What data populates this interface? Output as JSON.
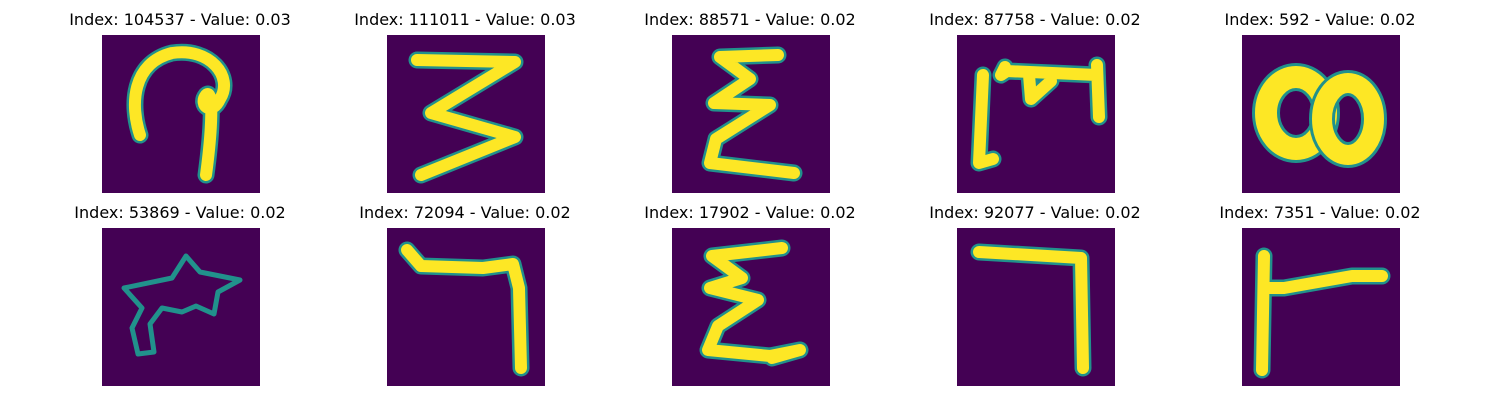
{
  "figure": {
    "panels": [
      {
        "index": "104537",
        "value": "0.03",
        "title": "Index: 104537 - Value: 0.03",
        "glyph": "loop-hook",
        "colors": {
          "background": "#440154",
          "stroke": "#fde725",
          "edge": "#21918c"
        }
      },
      {
        "index": "111011",
        "value": "0.03",
        "title": "Index: 111011 - Value: 0.03",
        "glyph": "reversed-s",
        "colors": {
          "background": "#440154",
          "stroke": "#fde725",
          "edge": "#21918c"
        }
      },
      {
        "index": "88571",
        "value": "0.02",
        "title": "Index: 88571 - Value: 0.02",
        "glyph": "epsilon",
        "colors": {
          "background": "#440154",
          "stroke": "#fde725",
          "edge": "#21918c"
        }
      },
      {
        "index": "87758",
        "value": "0.02",
        "title": "Index: 87758 - Value: 0.02",
        "glyph": "bracket-m",
        "colors": {
          "background": "#440154",
          "stroke": "#fde725",
          "edge": "#21918c"
        }
      },
      {
        "index": "592",
        "value": "0.02",
        "title": "Index: 592 - Value: 0.02",
        "glyph": "double-circle",
        "colors": {
          "background": "#440154",
          "stroke": "#fde725",
          "edge": "#21918c"
        }
      },
      {
        "index": "53869",
        "value": "0.02",
        "title": "Index: 53869 - Value: 0.02",
        "glyph": "blob",
        "colors": {
          "background": "#440154",
          "stroke": "#fde725",
          "edge": "#21918c"
        }
      },
      {
        "index": "72094",
        "value": "0.02",
        "title": "Index: 72094 - Value: 0.02",
        "glyph": "hook-seven",
        "colors": {
          "background": "#440154",
          "stroke": "#fde725",
          "edge": "#21918c"
        }
      },
      {
        "index": "17902",
        "value": "0.02",
        "title": "Index: 17902 - Value: 0.02",
        "glyph": "epsilon-tail",
        "colors": {
          "background": "#440154",
          "stroke": "#fde725",
          "edge": "#21918c"
        }
      },
      {
        "index": "92077",
        "value": "0.02",
        "title": "Index: 92077 - Value: 0.02",
        "glyph": "seven",
        "colors": {
          "background": "#440154",
          "stroke": "#fde725",
          "edge": "#21918c"
        }
      },
      {
        "index": "7351",
        "value": "0.02",
        "title": "Index: 7351 - Value: 0.02",
        "glyph": "t-turned",
        "colors": {
          "background": "#440154",
          "stroke": "#fde725",
          "edge": "#21918c"
        }
      }
    ]
  }
}
